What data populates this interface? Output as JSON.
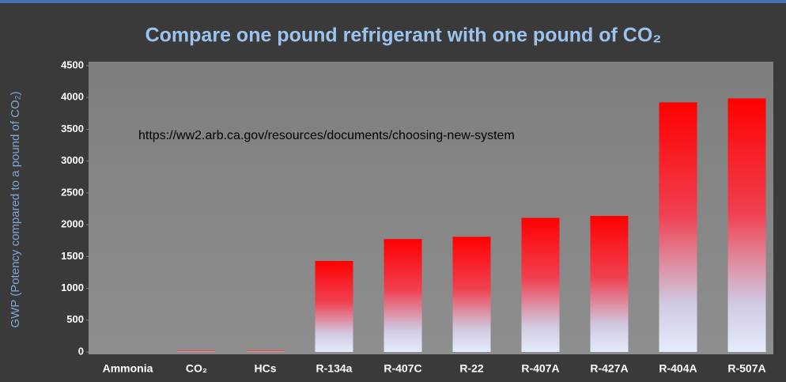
{
  "chart_data": {
    "type": "bar",
    "title": "Compare one pound refrigerant with one pound of CO₂",
    "y_label": "GWP (Potency compared to a pound of CO₂)",
    "annotation": "https://ww2.arb.ca.gov/resources/documents/choosing-new-system",
    "categories": [
      "Ammonia",
      "CO₂",
      "HCs",
      "R-134a",
      "R-407C",
      "R-22",
      "R-407A",
      "R-427A",
      "R-404A",
      "R-507A"
    ],
    "values": [
      0,
      20,
      20,
      1430,
      1774,
      1810,
      2107,
      2138,
      3922,
      3985
    ],
    "ylim": [
      0,
      4500
    ],
    "yticks": [
      0,
      500,
      1000,
      1500,
      2000,
      2500,
      3000,
      3500,
      4000,
      4500
    ],
    "grid": false
  }
}
